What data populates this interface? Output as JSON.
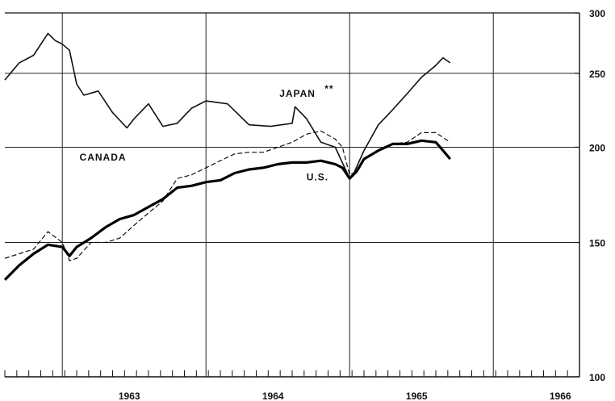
{
  "chart_data": {
    "type": "line",
    "y_scale": "log",
    "ylim": [
      100,
      300
    ],
    "xlim": [
      1962.6,
      1966.6
    ],
    "grid": true,
    "y_ticks": [
      100,
      150,
      200,
      250,
      300
    ],
    "y_tick_labels": [
      "100",
      "150",
      "200",
      "250",
      "300"
    ],
    "x_ticks": [
      1963,
      1964,
      1965,
      1966
    ],
    "x_tick_labels": [
      "1963",
      "1964",
      "1965",
      "1966"
    ],
    "series": [
      {
        "name": "JAPAN",
        "name_suffix": "**",
        "style": "solid",
        "x": [
          1962.6,
          1962.7,
          1962.8,
          1962.9,
          1962.95,
          1963.0,
          1963.05,
          1963.1,
          1963.15,
          1963.25,
          1963.35,
          1963.45,
          1963.5,
          1963.6,
          1963.7,
          1963.8,
          1963.9,
          1964.0,
          1964.15,
          1964.3,
          1964.45,
          1964.6,
          1964.62,
          1964.7,
          1964.8,
          1964.9,
          1965.0,
          1965.03,
          1965.1,
          1965.2,
          1965.3,
          1965.4,
          1965.5,
          1965.6,
          1965.65,
          1965.7
        ],
        "values": [
          245,
          258,
          264,
          282,
          276,
          273,
          268,
          242,
          234,
          237,
          222,
          212,
          218,
          228,
          213,
          215,
          225,
          230,
          228,
          214,
          213,
          215,
          226,
          218,
          203,
          200,
          182,
          185,
          198,
          214,
          224,
          235,
          247,
          256,
          262,
          258
        ]
      },
      {
        "name": "CANADA",
        "style": "dashed",
        "x": [
          1962.6,
          1962.7,
          1962.8,
          1962.9,
          1963.0,
          1963.05,
          1963.1,
          1963.2,
          1963.3,
          1963.4,
          1963.5,
          1963.6,
          1963.7,
          1963.8,
          1963.9,
          1964.0,
          1964.1,
          1964.2,
          1964.3,
          1964.4,
          1964.5,
          1964.6,
          1964.7,
          1964.8,
          1964.9,
          1964.95,
          1965.0,
          1965.05,
          1965.1,
          1965.2,
          1965.3,
          1965.4,
          1965.5,
          1965.6,
          1965.7
        ],
        "values": [
          143,
          145,
          147,
          155,
          150,
          142,
          143,
          150,
          150,
          152,
          158,
          164,
          170,
          182,
          184,
          188,
          192,
          196,
          197,
          197,
          200,
          203,
          208,
          210,
          205,
          200,
          184,
          186,
          193,
          198,
          202,
          203,
          209,
          209,
          203
        ]
      },
      {
        "name": "U.S.",
        "style": "bold",
        "x": [
          1962.6,
          1962.7,
          1962.8,
          1962.9,
          1963.0,
          1963.05,
          1963.1,
          1963.2,
          1963.3,
          1963.4,
          1963.5,
          1963.6,
          1963.7,
          1963.8,
          1963.9,
          1964.0,
          1964.1,
          1964.2,
          1964.3,
          1964.4,
          1964.5,
          1964.6,
          1964.7,
          1964.8,
          1964.9,
          1964.95,
          1965.0,
          1965.05,
          1965.1,
          1965.2,
          1965.3,
          1965.4,
          1965.5,
          1965.6,
          1965.65,
          1965.7
        ],
        "values": [
          134,
          140,
          145,
          149,
          148,
          144,
          148,
          152,
          157,
          161,
          163,
          167,
          171,
          177,
          178,
          180,
          181,
          185,
          187,
          188,
          190,
          191,
          191,
          192,
          190,
          188,
          182,
          186,
          193,
          198,
          202,
          202,
          204,
          203,
          198,
          193
        ]
      }
    ]
  }
}
